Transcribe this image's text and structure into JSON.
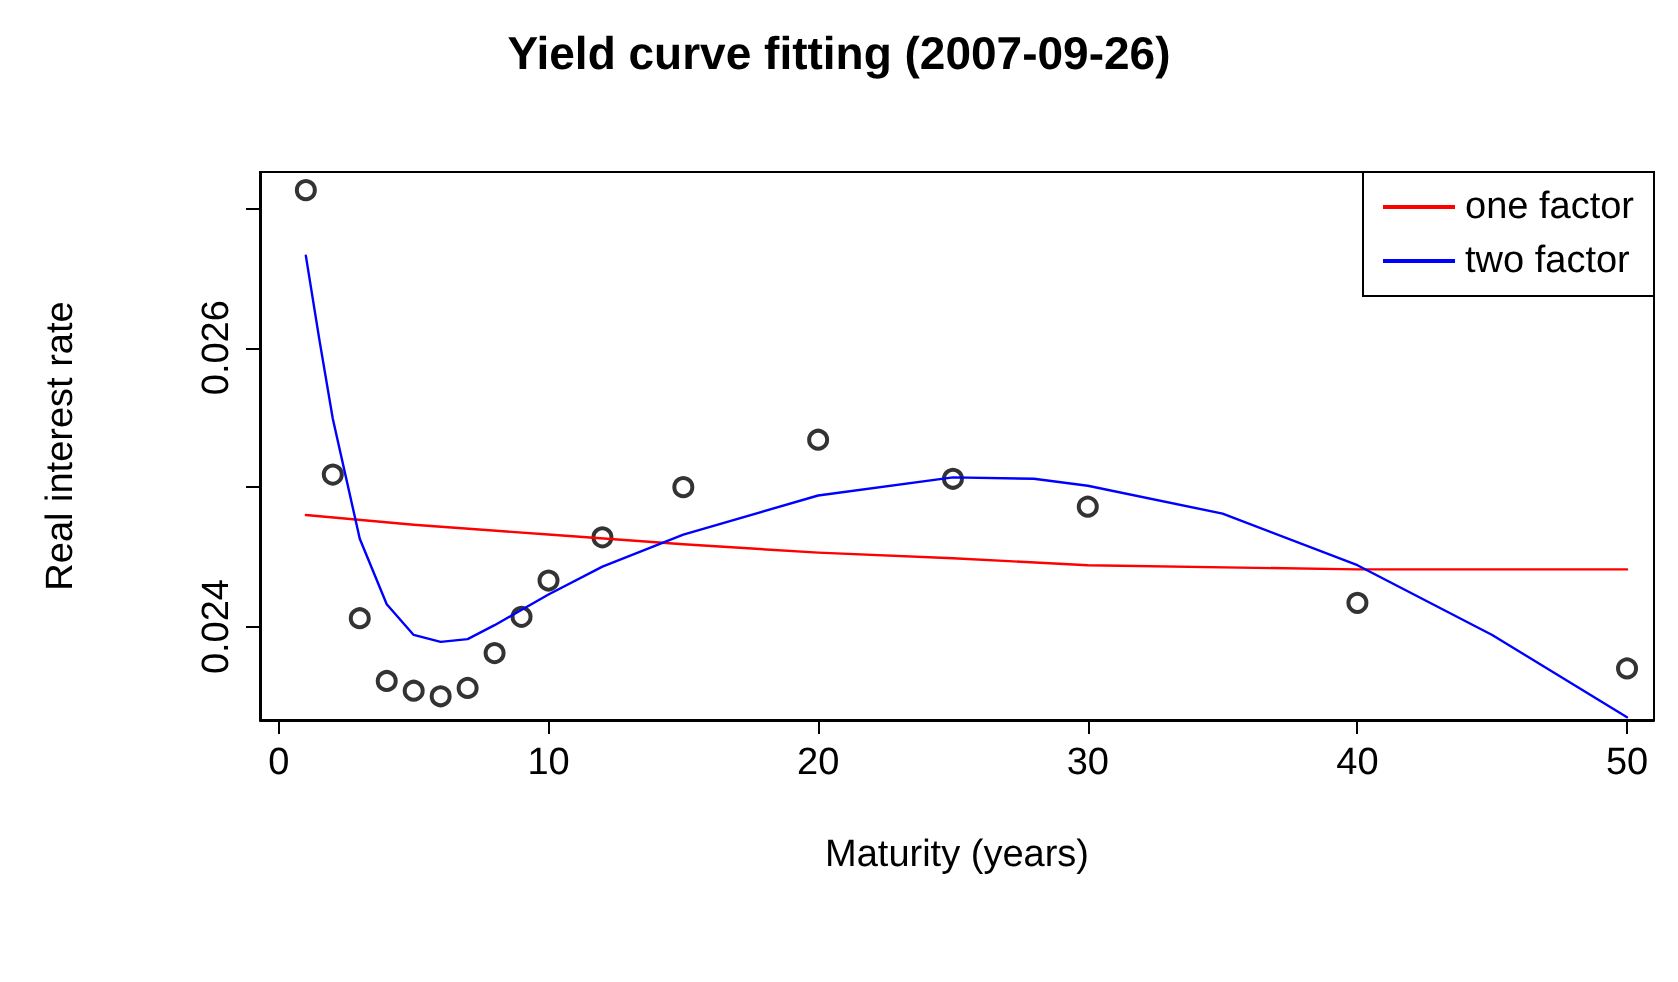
{
  "chart_data": {
    "type": "scatter",
    "title": "Yield curve fitting (2007-09-26)",
    "xlabel": "Maturity (years)",
    "ylabel": "Real interest rate",
    "x": [
      1,
      2,
      3,
      4,
      5,
      6,
      7,
      8,
      9,
      10,
      12,
      15,
      20,
      25,
      30,
      40,
      50
    ],
    "series": [
      {
        "color": "#000000",
        "marker": "circle",
        "values": [
          0.02713,
          0.02509,
          0.02406,
          0.02361,
          0.02354,
          0.0235,
          0.02356,
          0.02381,
          0.02407,
          0.02433,
          0.02464,
          0.025,
          0.02534,
          0.02506,
          0.02486,
          0.02417,
          0.0237
        ]
      },
      {
        "type": "line",
        "name": "one factor",
        "color": "#ff0000",
        "marker": "none",
        "x": [
          1,
          5,
          10,
          15,
          20,
          25,
          30,
          40,
          50
        ],
        "values": [
          0.0248,
          0.02473,
          0.02466,
          0.02459,
          0.02453,
          0.02449,
          0.02444,
          0.02441,
          0.02441
        ]
      },
      {
        "type": "line",
        "name": "two factor",
        "color": "#0000ff",
        "marker": "none",
        "x": [
          1,
          1.5,
          2,
          3,
          4,
          5,
          6,
          7,
          8,
          10,
          12,
          15,
          20,
          25,
          28,
          30,
          35,
          40,
          45,
          50
        ],
        "values": [
          0.02666,
          0.02606,
          0.02549,
          0.02463,
          0.02416,
          0.02394,
          0.02389,
          0.02391,
          0.02401,
          0.02423,
          0.02443,
          0.02466,
          0.02494,
          0.02507,
          0.02506,
          0.02501,
          0.02481,
          0.02444,
          0.02394,
          0.02335
        ]
      }
    ],
    "xlim": [
      -0.7,
      51
    ],
    "xticks": [
      0,
      10,
      20,
      30,
      40,
      50
    ],
    "ylim": [
      0.02333,
      0.02726
    ],
    "yticks": [
      0.024,
      {
        "value": 0.025,
        "label": null
      },
      0.026,
      {
        "value": 0.027,
        "label": null
      }
    ],
    "legend": "top right",
    "grid": false,
    "line_style": "solid"
  }
}
